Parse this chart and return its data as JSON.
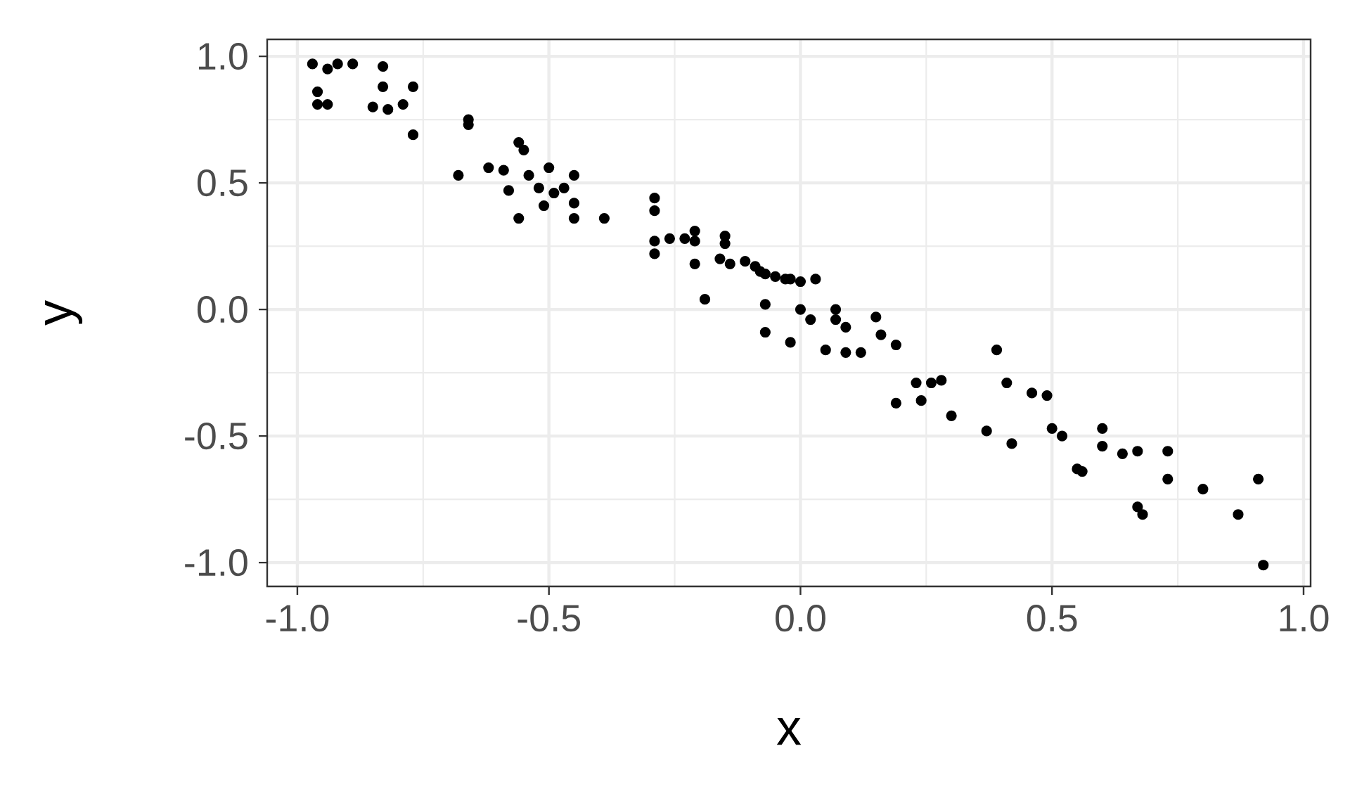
{
  "chart_data": {
    "type": "scatter",
    "xlabel": "x",
    "ylabel": "y",
    "xlim": [
      -1.06,
      1.014
    ],
    "ylim": [
      -1.094,
      1.067
    ],
    "xticks": [
      {
        "value": -1,
        "label": "-1.0"
      },
      {
        "value": -0.5,
        "label": "-0.5"
      },
      {
        "value": 0,
        "label": "0.0"
      },
      {
        "value": 0.5,
        "label": "0.5"
      },
      {
        "value": 1,
        "label": "1.0"
      }
    ],
    "yticks": [
      {
        "value": -1,
        "label": "-1.0"
      },
      {
        "value": -0.5,
        "label": "-0.5"
      },
      {
        "value": 0,
        "label": "0.0"
      },
      {
        "value": 0.5,
        "label": "0.5"
      },
      {
        "value": 1,
        "label": "1.0"
      }
    ],
    "grid": true,
    "color": "#000000",
    "x": [
      -0.97,
      -0.94,
      -0.92,
      -0.89,
      -0.96,
      -0.96,
      -0.94,
      -0.83,
      -0.83,
      -0.77,
      -0.85,
      -0.82,
      -0.79,
      -0.77,
      -0.68,
      -0.66,
      -0.66,
      -0.62,
      -0.59,
      -0.58,
      -0.56,
      -0.55,
      -0.54,
      -0.56,
      -0.52,
      -0.5,
      -0.51,
      -0.49,
      -0.47,
      -0.45,
      -0.45,
      -0.45,
      -0.39,
      -0.29,
      -0.29,
      -0.29,
      -0.29,
      -0.26,
      -0.23,
      -0.21,
      -0.21,
      -0.21,
      -0.19,
      -0.15,
      -0.15,
      -0.16,
      -0.14,
      -0.11,
      -0.09,
      -0.08,
      -0.07,
      -0.05,
      -0.03,
      -0.02,
      0.0,
      0.03,
      -0.07,
      -0.07,
      -0.02,
      0.0,
      0.02,
      0.05,
      0.07,
      0.07,
      0.09,
      0.09,
      0.12,
      0.15,
      0.16,
      0.19,
      0.19,
      0.23,
      0.24,
      0.26,
      0.28,
      0.3,
      0.37,
      0.39,
      0.41,
      0.42,
      0.46,
      0.49,
      0.5,
      0.52,
      0.55,
      0.56,
      0.6,
      0.6,
      0.64,
      0.67,
      0.67,
      0.68,
      0.73,
      0.73,
      0.8,
      0.87,
      0.91,
      0.92
    ],
    "values": [
      0.97,
      0.95,
      0.97,
      0.97,
      0.86,
      0.81,
      0.81,
      0.96,
      0.88,
      0.88,
      0.8,
      0.79,
      0.81,
      0.69,
      0.53,
      0.75,
      0.73,
      0.56,
      0.55,
      0.47,
      0.66,
      0.63,
      0.53,
      0.36,
      0.48,
      0.56,
      0.41,
      0.46,
      0.48,
      0.53,
      0.42,
      0.36,
      0.36,
      0.44,
      0.39,
      0.27,
      0.22,
      0.28,
      0.28,
      0.31,
      0.27,
      0.18,
      0.04,
      0.29,
      0.26,
      0.2,
      0.18,
      0.19,
      0.17,
      0.15,
      0.14,
      0.13,
      0.12,
      0.12,
      0.11,
      0.12,
      0.02,
      -0.09,
      -0.13,
      0.0,
      -0.04,
      -0.16,
      0.0,
      -0.04,
      -0.07,
      -0.17,
      -0.17,
      -0.03,
      -0.1,
      -0.14,
      -0.37,
      -0.29,
      -0.36,
      -0.29,
      -0.28,
      -0.42,
      -0.48,
      -0.16,
      -0.29,
      -0.53,
      -0.33,
      -0.34,
      -0.47,
      -0.5,
      -0.63,
      -0.64,
      -0.47,
      -0.54,
      -0.57,
      -0.56,
      -0.78,
      -0.81,
      -0.56,
      -0.67,
      -0.71,
      -0.81,
      -0.67,
      -1.01
    ]
  }
}
